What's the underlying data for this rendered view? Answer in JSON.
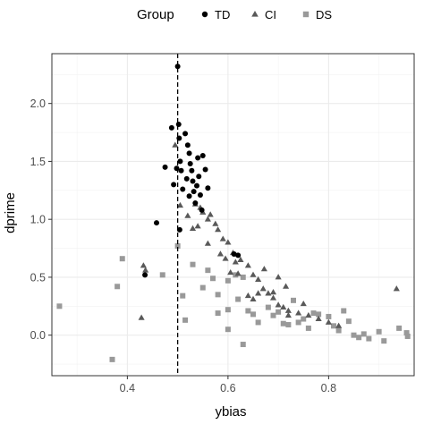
{
  "chart_data": {
    "type": "scatter",
    "xlabel": "ybias",
    "ylabel": "dprime",
    "xlim": [
      0.25,
      0.97
    ],
    "ylim": [
      -0.35,
      2.43
    ],
    "x_ticks": [
      0.4,
      0.6,
      0.8
    ],
    "x_tick_labels": [
      "0.4",
      "0.6",
      "0.8"
    ],
    "y_ticks": [
      0.0,
      0.5,
      1.0,
      1.5,
      2.0
    ],
    "y_tick_labels": [
      "0.0",
      "0.5",
      "1.0",
      "1.5",
      "2.0"
    ],
    "grid": true,
    "vline": {
      "x": 0.5,
      "style": "dashed"
    },
    "legend": {
      "title": "Group",
      "position": "top"
    },
    "series": [
      {
        "name": "TD",
        "marker": "circle",
        "color": "#000000",
        "points": [
          [
            0.5,
            2.32
          ],
          [
            0.502,
            1.82
          ],
          [
            0.503,
            1.7
          ],
          [
            0.505,
            1.5
          ],
          [
            0.507,
            1.42
          ],
          [
            0.51,
            1.26
          ],
          [
            0.504,
            0.91
          ],
          [
            0.435,
            0.52
          ],
          [
            0.458,
            0.97
          ],
          [
            0.475,
            1.45
          ],
          [
            0.488,
            1.79
          ],
          [
            0.492,
            1.3
          ],
          [
            0.498,
            1.44
          ],
          [
            0.515,
            1.74
          ],
          [
            0.52,
            1.64
          ],
          [
            0.523,
            1.57
          ],
          [
            0.525,
            1.48
          ],
          [
            0.528,
            1.42
          ],
          [
            0.53,
            1.33
          ],
          [
            0.532,
            1.24
          ],
          [
            0.535,
            1.14
          ],
          [
            0.54,
            1.53
          ],
          [
            0.542,
            1.37
          ],
          [
            0.545,
            1.21
          ],
          [
            0.548,
            1.08
          ],
          [
            0.55,
            1.55
          ],
          [
            0.555,
            1.43
          ],
          [
            0.56,
            1.27
          ],
          [
            0.523,
            1.2
          ],
          [
            0.518,
            1.35
          ],
          [
            0.538,
            1.29
          ],
          [
            0.612,
            0.7
          ],
          [
            0.62,
            0.69
          ]
        ]
      },
      {
        "name": "CI",
        "marker": "triangle",
        "color": "#595959",
        "points": [
          [
            0.495,
            1.64
          ],
          [
            0.505,
            1.12
          ],
          [
            0.52,
            1.03
          ],
          [
            0.535,
            1.13
          ],
          [
            0.545,
            1.1
          ],
          [
            0.55,
            1.06
          ],
          [
            0.565,
            1.04
          ],
          [
            0.56,
            1.0
          ],
          [
            0.575,
            0.96
          ],
          [
            0.58,
            0.91
          ],
          [
            0.59,
            0.83
          ],
          [
            0.6,
            0.8
          ],
          [
            0.61,
            0.71
          ],
          [
            0.625,
            0.65
          ],
          [
            0.64,
            0.6
          ],
          [
            0.65,
            0.52
          ],
          [
            0.66,
            0.48
          ],
          [
            0.67,
            0.4
          ],
          [
            0.68,
            0.36
          ],
          [
            0.69,
            0.32
          ],
          [
            0.7,
            0.26
          ],
          [
            0.71,
            0.24
          ],
          [
            0.72,
            0.21
          ],
          [
            0.74,
            0.19
          ],
          [
            0.76,
            0.17
          ],
          [
            0.78,
            0.14
          ],
          [
            0.8,
            0.11
          ],
          [
            0.82,
            0.08
          ],
          [
            0.54,
            0.94
          ],
          [
            0.53,
            0.92
          ],
          [
            0.56,
            0.79
          ],
          [
            0.585,
            0.7
          ],
          [
            0.595,
            0.66
          ],
          [
            0.615,
            0.63
          ],
          [
            0.672,
            0.57
          ],
          [
            0.7,
            0.5
          ],
          [
            0.715,
            0.42
          ],
          [
            0.66,
            0.36
          ],
          [
            0.65,
            0.31
          ],
          [
            0.69,
            0.37
          ],
          [
            0.72,
            0.17
          ],
          [
            0.75,
            0.27
          ],
          [
            0.62,
            0.53
          ],
          [
            0.605,
            0.54
          ],
          [
            0.64,
            0.34
          ],
          [
            0.432,
            0.6
          ],
          [
            0.436,
            0.56
          ],
          [
            0.428,
            0.15
          ],
          [
            0.935,
            0.4
          ]
        ]
      },
      {
        "name": "DS",
        "marker": "square",
        "color": "#999999",
        "points": [
          [
            0.265,
            0.25
          ],
          [
            0.37,
            -0.21
          ],
          [
            0.38,
            0.42
          ],
          [
            0.39,
            0.66
          ],
          [
            0.47,
            0.52
          ],
          [
            0.5,
            0.77
          ],
          [
            0.51,
            0.34
          ],
          [
            0.515,
            0.13
          ],
          [
            0.53,
            0.61
          ],
          [
            0.55,
            0.41
          ],
          [
            0.56,
            0.56
          ],
          [
            0.57,
            0.49
          ],
          [
            0.58,
            0.19
          ],
          [
            0.6,
            0.22
          ],
          [
            0.6,
            0.47
          ],
          [
            0.62,
            0.31
          ],
          [
            0.63,
            0.5
          ],
          [
            0.64,
            0.21
          ],
          [
            0.65,
            0.18
          ],
          [
            0.66,
            0.11
          ],
          [
            0.68,
            0.24
          ],
          [
            0.69,
            0.17
          ],
          [
            0.7,
            0.2
          ],
          [
            0.72,
            0.09
          ],
          [
            0.73,
            0.3
          ],
          [
            0.75,
            0.14
          ],
          [
            0.76,
            0.06
          ],
          [
            0.78,
            0.18
          ],
          [
            0.8,
            0.16
          ],
          [
            0.81,
            0.08
          ],
          [
            0.82,
            0.04
          ],
          [
            0.83,
            0.21
          ],
          [
            0.85,
            0.0
          ],
          [
            0.86,
            -0.02
          ],
          [
            0.88,
            -0.03
          ],
          [
            0.9,
            0.03
          ],
          [
            0.91,
            -0.05
          ],
          [
            0.94,
            0.06
          ],
          [
            0.955,
            0.02
          ],
          [
            0.957,
            -0.01
          ],
          [
            0.6,
            0.05
          ],
          [
            0.63,
            -0.08
          ],
          [
            0.58,
            0.35
          ],
          [
            0.615,
            0.52
          ],
          [
            0.71,
            0.1
          ],
          [
            0.74,
            0.11
          ],
          [
            0.77,
            0.19
          ],
          [
            0.84,
            0.12
          ],
          [
            0.87,
            0.01
          ]
        ]
      }
    ]
  }
}
